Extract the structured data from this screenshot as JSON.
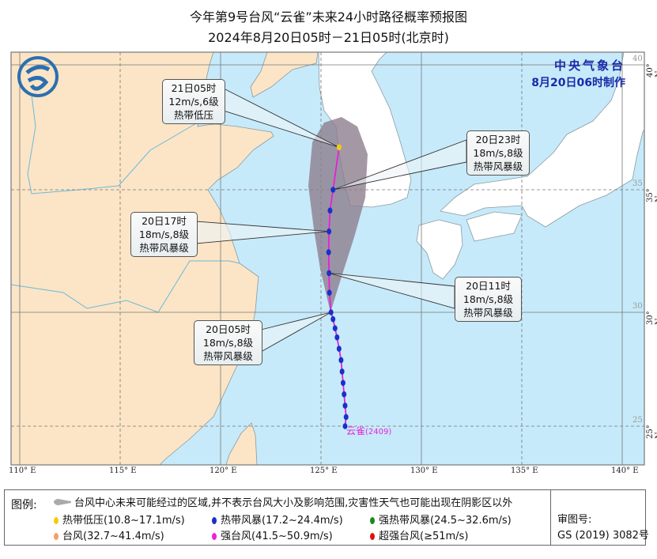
{
  "title": {
    "line1": "今年第9号台风“云雀”未来24小时路径概率预报图",
    "line2": "2024年8月20日05时－21日05时(北京时)"
  },
  "agency": {
    "name": "中央气象台",
    "issued": "8月20日06时制作"
  },
  "colors": {
    "sea": "#c6eafa",
    "china_land": "#fbe5c6",
    "other_land": "#ffffff",
    "track": "#e81fd8",
    "cone": "#8c7b8c",
    "tropical_storm": "#1b2fc9",
    "depression": "#f2cc10"
  },
  "axes": {
    "lon_labels": [
      "110° E",
      "115° E",
      "120° E",
      "125° E",
      "130° E",
      "135° E",
      "140° E"
    ],
    "lat_labels": [
      "25° N",
      "30° N",
      "35° N",
      "40° N"
    ],
    "lat_inner": [
      "25",
      "30",
      "35",
      "40"
    ]
  },
  "typhoon_label": {
    "name": "云雀",
    "code": "(2409)"
  },
  "forecast_points": [
    {
      "time": "21日05时",
      "wind": "12m/s,6级",
      "grade": "热带低压",
      "lon": 125.9,
      "lat": 36.7
    },
    {
      "time": "20日23时",
      "wind": "18m/s,8级",
      "grade": "热带风暴级",
      "lon": 125.6,
      "lat": 35.0
    },
    {
      "time": "20日17时",
      "wind": "18m/s,8级",
      "grade": "热带风暴级",
      "lon": 125.4,
      "lat": 33.3
    },
    {
      "time": "20日11时",
      "wind": "18m/s,8级",
      "grade": "热带风暴级",
      "lon": 125.4,
      "lat": 31.6
    },
    {
      "time": "20日05时",
      "wind": "18m/s,8级",
      "grade": "热带风暴级",
      "lon": 125.5,
      "lat": 30.0
    }
  ],
  "legend": {
    "header": "图例:",
    "cone_text": "台风中心未来可能经过的区域,并不表示台风大小及影响范围,灾害性天气也可能出现在阴影区以外",
    "items": [
      {
        "label": "热带低压(10.8~17.1m/s)",
        "color": "#f2cc10"
      },
      {
        "label": "热带风暴(17.2~24.4m/s)",
        "color": "#1b2fc9"
      },
      {
        "label": "强热带风暴(24.5~32.6m/s)",
        "color": "#1a8a1a"
      },
      {
        "label": "台风(32.7~41.4m/s)",
        "color": "#f7a060"
      },
      {
        "label": "强台风(41.5~50.9m/s)",
        "color": "#f020e0"
      },
      {
        "label": "超强台风(≥51m/s)",
        "color": "#e01010"
      }
    ],
    "review_label": "审图号:",
    "review_number": "GS (2019) 3082号"
  }
}
